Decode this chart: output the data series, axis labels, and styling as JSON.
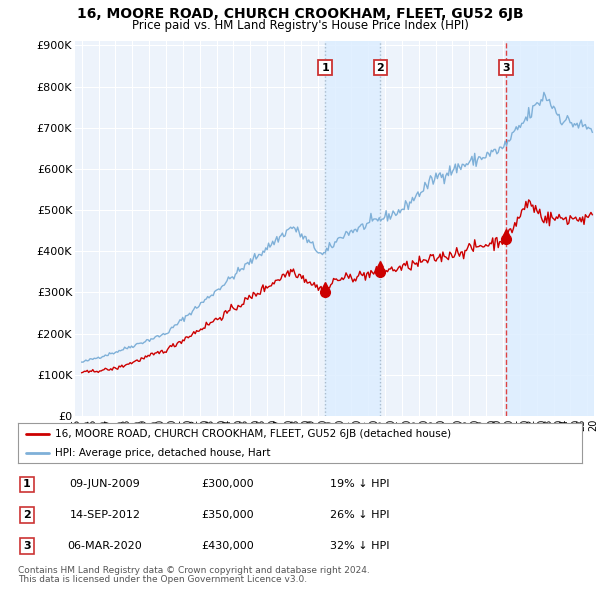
{
  "title": "16, MOORE ROAD, CHURCH CROOKHAM, FLEET, GU52 6JB",
  "subtitle": "Price paid vs. HM Land Registry's House Price Index (HPI)",
  "yticks": [
    0,
    100000,
    200000,
    300000,
    400000,
    500000,
    600000,
    700000,
    800000,
    900000
  ],
  "ytick_labels": [
    "£0",
    "£100K",
    "£200K",
    "£300K",
    "£400K",
    "£500K",
    "£600K",
    "£700K",
    "£800K",
    "£900K"
  ],
  "xlim_start": 1994.6,
  "xlim_end": 2025.4,
  "ylim_min": 0,
  "ylim_max": 910000,
  "sale_dates": [
    2009.44,
    2012.71,
    2020.18
  ],
  "sale_prices": [
    300000,
    350000,
    430000
  ],
  "sale_labels": [
    "1",
    "2",
    "3"
  ],
  "legend_red": "16, MOORE ROAD, CHURCH CROOKHAM, FLEET, GU52 6JB (detached house)",
  "legend_blue": "HPI: Average price, detached house, Hart",
  "table_data": [
    [
      "1",
      "09-JUN-2009",
      "£300,000",
      "19% ↓ HPI"
    ],
    [
      "2",
      "14-SEP-2012",
      "£350,000",
      "26% ↓ HPI"
    ],
    [
      "3",
      "06-MAR-2020",
      "£430,000",
      "32% ↓ HPI"
    ]
  ],
  "footnote1": "Contains HM Land Registry data © Crown copyright and database right 2024.",
  "footnote2": "This data is licensed under the Open Government Licence v3.0.",
  "red_color": "#cc0000",
  "blue_color": "#7fb0d8",
  "shade_color": "#ddeeff",
  "vline_dotted_color": "#aabbcc",
  "vline_red_dash_color": "#dd4444",
  "background_chart": "#edf3fb",
  "grid_color": "#ffffff"
}
